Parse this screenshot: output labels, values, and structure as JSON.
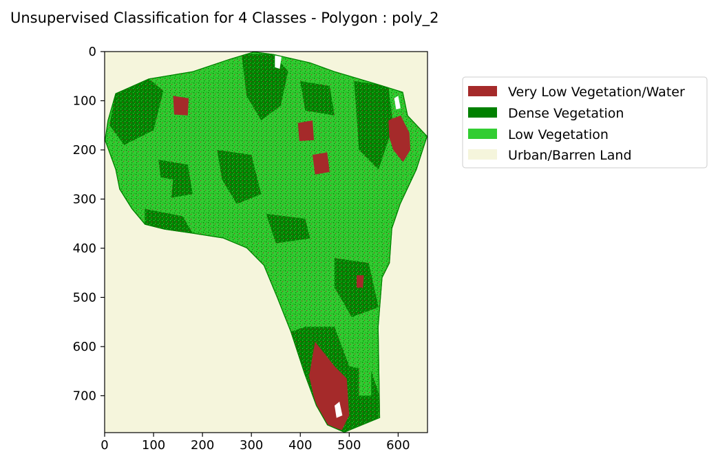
{
  "chart_data": {
    "type": "heatmap",
    "title": "Unsupervised Classification for 4 Classes - Polygon : poly_2",
    "xlabel": "",
    "ylabel": "",
    "xlim": [
      0,
      660
    ],
    "ylim": [
      775,
      0
    ],
    "x_ticks": [
      0,
      100,
      200,
      300,
      400,
      500,
      600
    ],
    "y_ticks": [
      0,
      100,
      200,
      300,
      400,
      500,
      600,
      700
    ],
    "grid": false,
    "legend_position": "upper right, outside the axes",
    "classes": [
      {
        "name": "Very Low Vegetation/Water",
        "color": "#a52a2a"
      },
      {
        "name": "Dense Vegetation",
        "color": "#008000"
      },
      {
        "name": "Low Vegetation",
        "color": "#32cd32"
      },
      {
        "name": "Urban/Barren Land",
        "color": "#f5f5dc"
      }
    ],
    "background_class": "Urban/Barren Land",
    "polygon_boundary": [
      [
        305,
        0
      ],
      [
        345,
        5
      ],
      [
        420,
        22
      ],
      [
        470,
        40
      ],
      [
        555,
        65
      ],
      [
        610,
        82
      ],
      [
        620,
        130
      ],
      [
        660,
        172
      ],
      [
        638,
        240
      ],
      [
        605,
        310
      ],
      [
        588,
        360
      ],
      [
        583,
        430
      ],
      [
        568,
        460
      ],
      [
        560,
        560
      ],
      [
        563,
        745
      ],
      [
        490,
        775
      ],
      [
        455,
        760
      ],
      [
        432,
        720
      ],
      [
        408,
        655
      ],
      [
        380,
        570
      ],
      [
        352,
        500
      ],
      [
        325,
        435
      ],
      [
        290,
        400
      ],
      [
        242,
        380
      ],
      [
        178,
        370
      ],
      [
        122,
        362
      ],
      [
        82,
        352
      ],
      [
        55,
        320
      ],
      [
        30,
        280
      ],
      [
        22,
        240
      ],
      [
        0,
        180
      ],
      [
        6,
        140
      ],
      [
        22,
        85
      ],
      [
        90,
        55
      ],
      [
        180,
        40
      ],
      [
        255,
        15
      ]
    ],
    "dense_zones": [
      {
        "points": [
          [
            410,
            560
          ],
          [
            470,
            560
          ],
          [
            500,
            640
          ],
          [
            545,
            650
          ],
          [
            562,
            700
          ],
          [
            560,
            745
          ],
          [
            490,
            775
          ],
          [
            455,
            760
          ],
          [
            432,
            720
          ],
          [
            408,
            655
          ],
          [
            380,
            570
          ]
        ]
      },
      {
        "points": [
          [
            280,
            5
          ],
          [
            345,
            5
          ],
          [
            375,
            40
          ],
          [
            360,
            110
          ],
          [
            320,
            140
          ],
          [
            290,
            90
          ]
        ]
      },
      {
        "points": [
          [
            22,
            85
          ],
          [
            90,
            55
          ],
          [
            120,
            80
          ],
          [
            100,
            160
          ],
          [
            40,
            190
          ],
          [
            10,
            150
          ]
        ]
      },
      {
        "points": [
          [
            82,
            320
          ],
          [
            160,
            335
          ],
          [
            180,
            370
          ],
          [
            122,
            362
          ],
          [
            82,
            352
          ]
        ]
      },
      {
        "points": [
          [
            510,
            60
          ],
          [
            580,
            70
          ],
          [
            590,
            150
          ],
          [
            560,
            240
          ],
          [
            520,
            200
          ]
        ]
      },
      {
        "points": [
          [
            230,
            200
          ],
          [
            300,
            210
          ],
          [
            320,
            290
          ],
          [
            270,
            310
          ],
          [
            240,
            260
          ]
        ]
      },
      {
        "points": [
          [
            470,
            420
          ],
          [
            540,
            430
          ],
          [
            560,
            520
          ],
          [
            505,
            540
          ],
          [
            470,
            480
          ]
        ]
      },
      {
        "points": [
          [
            110,
            220
          ],
          [
            170,
            230
          ],
          [
            180,
            290
          ],
          [
            120,
            300
          ]
        ]
      },
      {
        "points": [
          [
            330,
            330
          ],
          [
            410,
            340
          ],
          [
            420,
            380
          ],
          [
            350,
            390
          ]
        ]
      },
      {
        "points": [
          [
            400,
            60
          ],
          [
            460,
            70
          ],
          [
            470,
            130
          ],
          [
            410,
            120
          ]
        ]
      }
    ],
    "lowveg_zones": [
      {
        "points": [
          [
            170,
            80
          ],
          [
            230,
            80
          ],
          [
            235,
            190
          ],
          [
            175,
            200
          ]
        ]
      },
      {
        "points": [
          [
            310,
            150
          ],
          [
            390,
            160
          ],
          [
            400,
            260
          ],
          [
            320,
            270
          ]
        ]
      },
      {
        "points": [
          [
            440,
            250
          ],
          [
            520,
            255
          ],
          [
            525,
            330
          ],
          [
            445,
            340
          ]
        ]
      },
      {
        "points": [
          [
            520,
            600
          ],
          [
            545,
            600
          ],
          [
            545,
            700
          ],
          [
            520,
            700
          ]
        ]
      },
      {
        "points": [
          [
            80,
            250
          ],
          [
            140,
            260
          ],
          [
            135,
            310
          ],
          [
            85,
            300
          ]
        ]
      }
    ],
    "water_patches": [
      {
        "points": [
          [
            580,
            140
          ],
          [
            605,
            130
          ],
          [
            623,
            165
          ],
          [
            625,
            200
          ],
          [
            610,
            225
          ],
          [
            590,
            200
          ],
          [
            582,
            175
          ]
        ]
      },
      {
        "points": [
          [
            430,
            590
          ],
          [
            470,
            640
          ],
          [
            495,
            665
          ],
          [
            500,
            740
          ],
          [
            485,
            770
          ],
          [
            455,
            760
          ],
          [
            432,
            720
          ],
          [
            418,
            660
          ]
        ]
      },
      {
        "points": [
          [
            140,
            90
          ],
          [
            172,
            95
          ],
          [
            170,
            130
          ],
          [
            142,
            128
          ]
        ]
      },
      {
        "points": [
          [
            425,
            210
          ],
          [
            455,
            205
          ],
          [
            460,
            245
          ],
          [
            430,
            250
          ]
        ]
      },
      {
        "points": [
          [
            395,
            145
          ],
          [
            425,
            140
          ],
          [
            428,
            180
          ],
          [
            398,
            182
          ]
        ]
      },
      {
        "points": [
          [
            515,
            455
          ],
          [
            530,
            455
          ],
          [
            528,
            480
          ],
          [
            515,
            480
          ]
        ]
      }
    ],
    "white_gaps": [
      {
        "points": [
          [
            348,
            8
          ],
          [
            362,
            8
          ],
          [
            358,
            35
          ],
          [
            348,
            32
          ]
        ]
      },
      {
        "points": [
          [
            592,
            95
          ],
          [
            600,
            90
          ],
          [
            605,
            115
          ],
          [
            596,
            118
          ]
        ]
      },
      {
        "points": [
          [
            470,
            720
          ],
          [
            480,
            712
          ],
          [
            486,
            740
          ],
          [
            474,
            745
          ]
        ]
      }
    ]
  }
}
